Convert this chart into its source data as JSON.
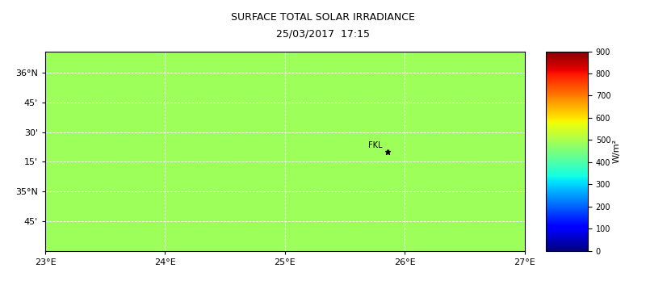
{
  "title_line1": "SURFACE TOTAL SOLAR IRRADIANCE",
  "title_line2": "25/03/2017  17:15",
  "lon_min": 23.0,
  "lon_max": 27.0,
  "lat_min": 34.5,
  "lat_max": 36.18,
  "lon_ticks": [
    23,
    24,
    25,
    26,
    27
  ],
  "lon_tick_labels": [
    "23°E",
    "24°E",
    "25°E",
    "26°E",
    "27°E"
  ],
  "lat_ticks": [
    34.75,
    35.0,
    35.25,
    35.5,
    35.75,
    36.0
  ],
  "lat_tick_labels": [
    "45'",
    "35°N",
    "15'",
    "30'",
    "45'",
    "36°N"
  ],
  "colorbar_label": "W/m²",
  "colorbar_ticks": [
    0,
    100,
    200,
    300,
    400,
    500,
    600,
    700,
    800,
    900
  ],
  "vmin": 0,
  "vmax": 900,
  "fill_value": 487,
  "background_color": "#8c9fd4",
  "grid_color": "#ffffff",
  "title_fontsize": 9,
  "fkl_lon": 25.855,
  "fkl_lat": 35.335,
  "colormap": "jet",
  "map_bg_color": "#aaaaaa",
  "outer_bg": "#cccccc",
  "frame_color": "black"
}
